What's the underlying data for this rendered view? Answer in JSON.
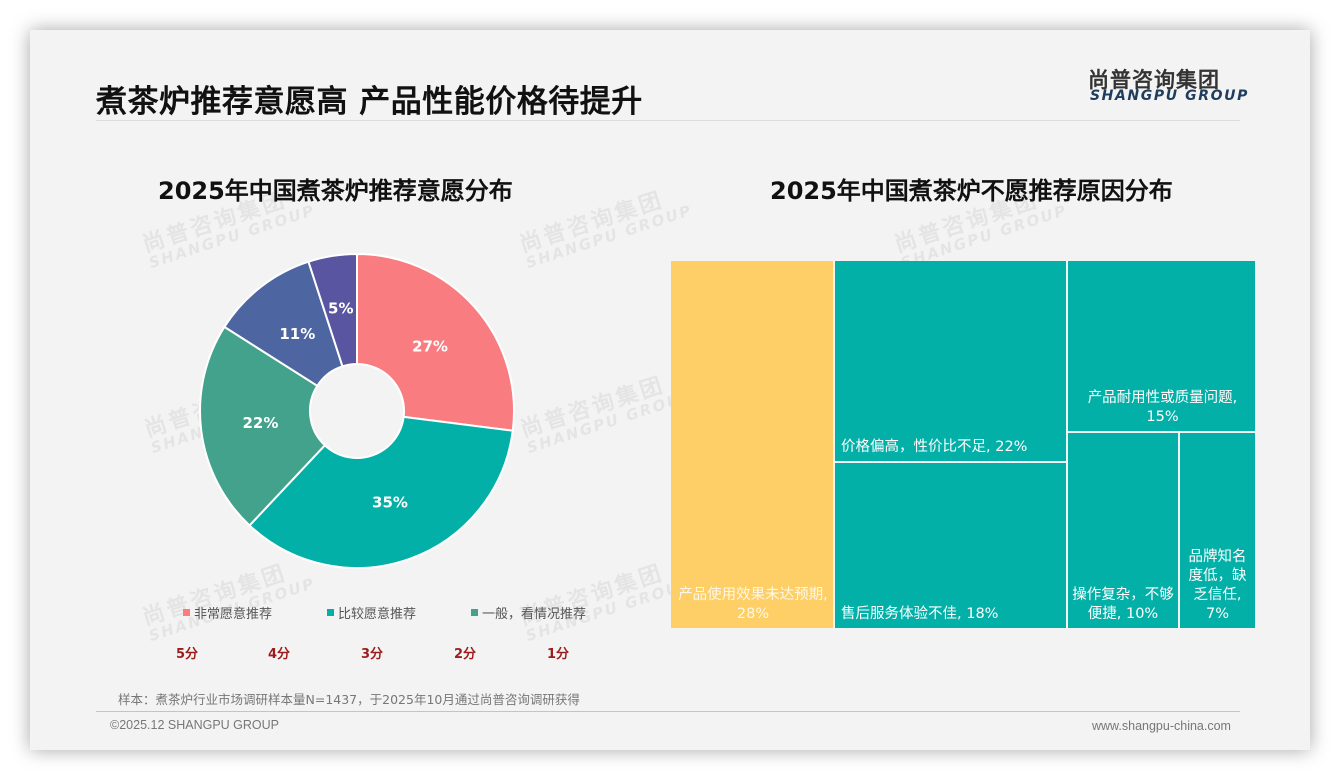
{
  "header": {
    "title": "煮茶炉推荐意愿高 产品性能价格待提升",
    "logo_cn": "尚普咨询集团",
    "logo_en": "SHANGPU GROUP"
  },
  "watermark": {
    "cn": "尚普咨询集团",
    "en": "SHANGPU GROUP"
  },
  "left_chart": {
    "title": "2025年中国煮茶炉推荐意愿分布",
    "legend": [
      {
        "label": "非常愿意推荐",
        "color": "#f87c80"
      },
      {
        "label": "比较愿意推荐",
        "color": "#02b0a8"
      },
      {
        "label": "一般，看情况推荐",
        "color": "#43a28c"
      }
    ],
    "scores": [
      "5分",
      "4分",
      "3分",
      "2分",
      "1分"
    ]
  },
  "right_chart": {
    "title": "2025年中国煮茶炉不愿推荐原因分布"
  },
  "chart_data": [
    {
      "type": "pie",
      "title": "2025年中国煮茶炉推荐意愿分布",
      "donut": true,
      "categories": [
        "5分 非常愿意推荐",
        "4分 比较愿意推荐",
        "3分 一般，看情况推荐",
        "2分",
        "1分"
      ],
      "values": [
        27,
        35,
        22,
        11,
        5
      ],
      "labels": [
        "27%",
        "35%",
        "22%",
        "11%",
        "5%"
      ],
      "colors": [
        "#f87c80",
        "#02b0a8",
        "#43a28c",
        "#4d65a0",
        "#5a55a0"
      ],
      "legend_position": "bottom"
    },
    {
      "type": "treemap",
      "title": "2025年中国煮茶炉不愿推荐原因分布",
      "categories": [
        "产品使用效果未达预期",
        "价格偏高，性价比不足",
        "售后服务体验不佳",
        "产品耐用性或质量问题",
        "操作复杂，不够便捷",
        "品牌知名度低，缺乏信任"
      ],
      "values": [
        28,
        22,
        18,
        15,
        10,
        7
      ],
      "labels": [
        "产品使用效果未达预期, 28%",
        "价格偏高，性价比不足, 22%",
        "售后服务体验不佳, 18%",
        "产品耐用性或质量问题, 15%",
        "操作复杂，不够便捷, 10%",
        "品牌知名度低，缺乏信任, 7%"
      ],
      "colors": [
        "#fdcf66",
        "#02b0a8",
        "#02b0a8",
        "#02b0a8",
        "#02b0a8",
        "#02b0a8"
      ],
      "unit": "%"
    }
  ],
  "footer": {
    "sample_note": "样本：煮茶炉行业市场调研样本量N=1437，于2025年10月通过尚普咨询调研获得",
    "copyright": "©2025.12 SHANGPU GROUP",
    "website": "www.shangpu-china.com"
  }
}
